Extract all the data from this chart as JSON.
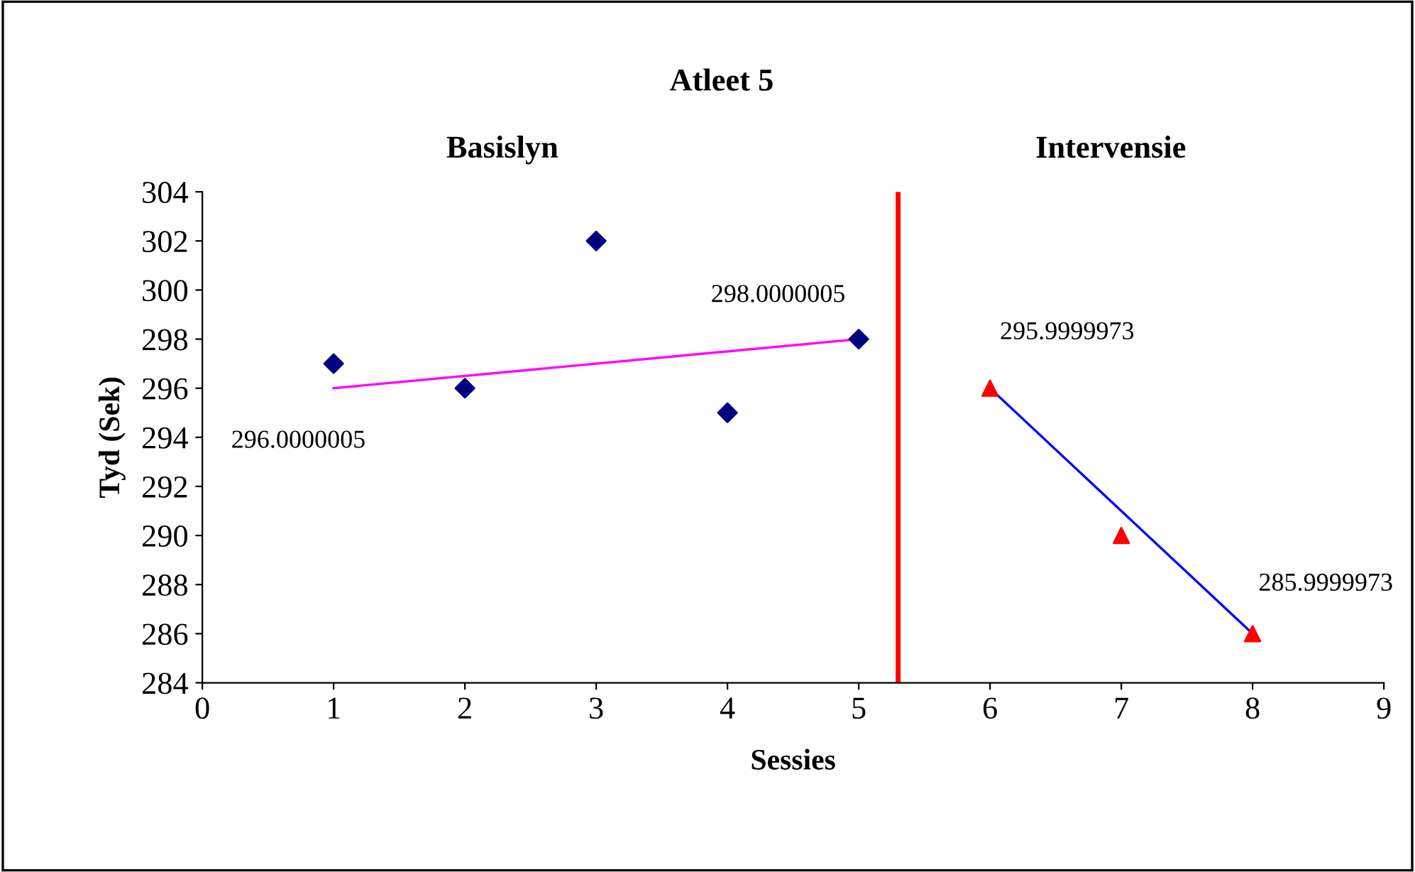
{
  "chart_data": {
    "type": "scatter",
    "title": "Atleet 5",
    "xlabel": "Sessies",
    "ylabel": "Tyd (Sek)",
    "xlim": [
      0,
      9
    ],
    "xticks": [
      0,
      1,
      2,
      3,
      4,
      5,
      6,
      7,
      8,
      9
    ],
    "ylim": [
      284,
      304
    ],
    "yticks": [
      284,
      286,
      288,
      290,
      292,
      294,
      296,
      298,
      300,
      302,
      304
    ],
    "grid": false,
    "legend": false,
    "series": [
      {
        "color": "#000080",
        "marker": "diamond",
        "x": [
          1,
          2,
          3,
          4,
          5
        ],
        "values": [
          297,
          296,
          302,
          295,
          298
        ]
      },
      {
        "color": "#ff0000",
        "marker": "triangle",
        "x": [
          6,
          7,
          8
        ],
        "values": [
          296,
          290,
          286
        ]
      },
      {
        "type": "line",
        "color": "#ff00ff",
        "line_style": "solid",
        "x": [
          1,
          5
        ],
        "values": [
          296,
          298
        ]
      },
      {
        "type": "line",
        "color": "#0000ff",
        "line_style": "solid",
        "x": [
          6,
          8
        ],
        "values": [
          296,
          286
        ]
      }
    ],
    "ref_lines": [
      {
        "axis": "x",
        "value": 5.3,
        "color": "#ff0000",
        "line_style": "solid"
      }
    ],
    "annotations": [
      "Basislyn",
      "Intervensie",
      {
        "text": "296.0000005",
        "x": 1,
        "y": 296.0000005
      },
      {
        "text": "298.0000005",
        "x": 5,
        "y": 298.0000005
      },
      {
        "text": "295.9999973",
        "x": 6,
        "y": 295.9999973
      },
      {
        "text": "285.9999973",
        "x": 8,
        "y": 285.9999973
      }
    ]
  }
}
